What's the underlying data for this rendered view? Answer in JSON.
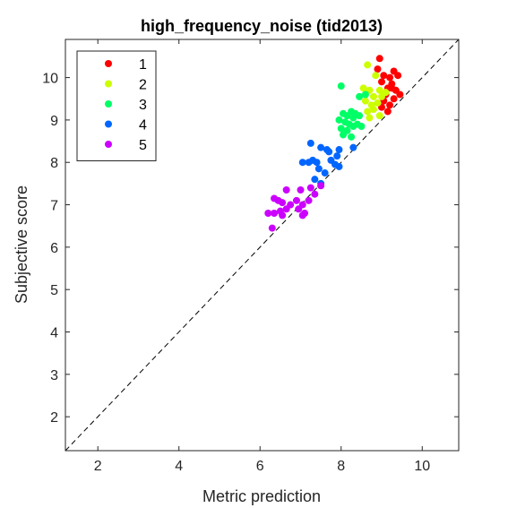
{
  "chart_data": {
    "type": "scatter",
    "title": "high_frequency_noise (tid2013)",
    "xlabel": "Metric prediction",
    "ylabel": "Subjective score",
    "xlim": [
      1.2,
      10.9
    ],
    "ylim": [
      1.2,
      10.9
    ],
    "xticks": [
      2,
      4,
      6,
      8,
      10
    ],
    "yticks": [
      2,
      3,
      4,
      5,
      6,
      7,
      8,
      9,
      10
    ],
    "grid": false,
    "legend_position": "top-left",
    "reference_line": "dashed diagonal y = x",
    "series": [
      {
        "name": "1",
        "color": "#ff0000",
        "points": [
          [
            8.95,
            10.45
          ],
          [
            8.9,
            10.2
          ],
          [
            9.3,
            10.15
          ],
          [
            9.05,
            10.05
          ],
          [
            9.2,
            10.0
          ],
          [
            9.4,
            10.05
          ],
          [
            9.0,
            9.9
          ],
          [
            9.25,
            9.85
          ],
          [
            9.15,
            9.75
          ],
          [
            9.35,
            9.7
          ],
          [
            9.1,
            9.6
          ],
          [
            9.45,
            9.6
          ],
          [
            9.3,
            9.5
          ],
          [
            9.05,
            9.45
          ],
          [
            9.2,
            9.35
          ],
          [
            9.0,
            9.3
          ],
          [
            9.15,
            9.2
          ],
          [
            9.25,
            9.75
          ]
        ]
      },
      {
        "name": "2",
        "color": "#ccff00",
        "points": [
          [
            8.65,
            10.3
          ],
          [
            8.85,
            10.05
          ],
          [
            8.55,
            9.75
          ],
          [
            8.7,
            9.7
          ],
          [
            8.95,
            9.7
          ],
          [
            9.1,
            9.65
          ],
          [
            8.8,
            9.55
          ],
          [
            8.6,
            9.45
          ],
          [
            8.75,
            9.35
          ],
          [
            8.9,
            9.4
          ],
          [
            9.0,
            9.55
          ],
          [
            8.65,
            9.2
          ],
          [
            8.8,
            9.25
          ],
          [
            8.7,
            9.05
          ],
          [
            8.95,
            9.1
          ]
        ]
      },
      {
        "name": "3",
        "color": "#00ff66",
        "points": [
          [
            8.0,
            9.8
          ],
          [
            8.6,
            9.6
          ],
          [
            8.45,
            9.55
          ],
          [
            8.25,
            9.2
          ],
          [
            8.35,
            9.15
          ],
          [
            8.05,
            9.15
          ],
          [
            8.15,
            9.1
          ],
          [
            7.95,
            9.0
          ],
          [
            8.1,
            8.95
          ],
          [
            8.2,
            8.9
          ],
          [
            8.4,
            8.9
          ],
          [
            8.5,
            8.85
          ],
          [
            8.3,
            8.85
          ],
          [
            8.0,
            8.8
          ],
          [
            8.15,
            8.75
          ],
          [
            8.05,
            8.65
          ],
          [
            8.25,
            8.6
          ],
          [
            8.3,
            9.05
          ],
          [
            8.45,
            9.1
          ]
        ]
      },
      {
        "name": "4",
        "color": "#0066ff",
        "points": [
          [
            7.25,
            8.45
          ],
          [
            7.5,
            8.35
          ],
          [
            7.65,
            8.3
          ],
          [
            7.95,
            8.3
          ],
          [
            8.3,
            8.35
          ],
          [
            7.7,
            8.25
          ],
          [
            7.9,
            8.15
          ],
          [
            7.75,
            8.05
          ],
          [
            7.3,
            8.05
          ],
          [
            7.05,
            8.0
          ],
          [
            7.2,
            8.0
          ],
          [
            7.4,
            8.0
          ],
          [
            7.85,
            7.95
          ],
          [
            7.95,
            7.9
          ],
          [
            7.45,
            7.85
          ],
          [
            7.6,
            7.75
          ],
          [
            7.35,
            7.6
          ],
          [
            7.5,
            7.5
          ]
        ]
      },
      {
        "name": "5",
        "color": "#cc00ff",
        "points": [
          [
            6.65,
            7.35
          ],
          [
            7.0,
            7.35
          ],
          [
            7.5,
            7.45
          ],
          [
            6.35,
            7.15
          ],
          [
            6.45,
            7.1
          ],
          [
            6.9,
            7.1
          ],
          [
            7.2,
            7.1
          ],
          [
            7.35,
            7.25
          ],
          [
            6.55,
            7.05
          ],
          [
            6.75,
            7.0
          ],
          [
            7.05,
            7.0
          ],
          [
            6.5,
            6.85
          ],
          [
            6.65,
            6.9
          ],
          [
            6.95,
            6.9
          ],
          [
            6.2,
            6.8
          ],
          [
            6.35,
            6.8
          ],
          [
            6.55,
            6.75
          ],
          [
            7.05,
            6.75
          ],
          [
            6.3,
            6.45
          ],
          [
            7.1,
            6.8
          ],
          [
            7.25,
            7.4
          ]
        ]
      }
    ]
  }
}
